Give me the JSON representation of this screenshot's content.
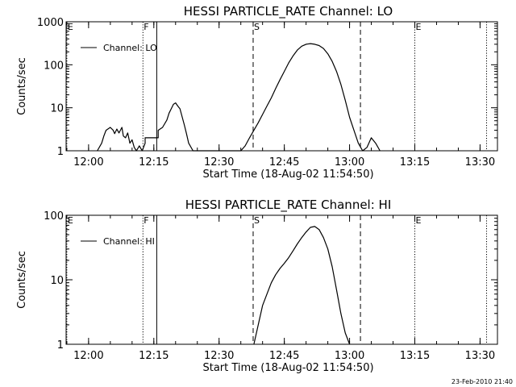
{
  "footer_stamp": "23-Feb-2010 21:40",
  "chart_data": [
    {
      "type": "line",
      "title": "HESSI PARTICLE_RATE Channel: LO",
      "xlabel": "Start Time (18-Aug-02 11:54:50)",
      "ylabel": "Counts/sec",
      "yscale": "log",
      "ylim": [
        1,
        1000
      ],
      "xlim": [
        "11:54:50",
        "13:34:00"
      ],
      "x_ticks": [
        "12:00",
        "12:15",
        "12:30",
        "12:45",
        "13:00",
        "13:15",
        "13:30"
      ],
      "y_ticks": [
        "1",
        "10",
        "100",
        "1000"
      ],
      "legend": "top-left",
      "series": [
        {
          "name": "Channel: LO",
          "x": [
            "12:02:00",
            "12:03:00",
            "12:03:30",
            "12:04:00",
            "12:05:00",
            "12:05:40",
            "12:06:00",
            "12:06:30",
            "12:07:00",
            "12:07:40",
            "12:08:00",
            "12:08:30",
            "12:09:00",
            "12:09:30",
            "12:10:00",
            "12:10:30",
            "12:11:00",
            "12:11:40",
            "12:12:20",
            "12:13:00",
            "12:13:00",
            "12:16:00",
            "12:16:00",
            "12:17:00",
            "12:18:00",
            "12:18:30",
            "12:19:00",
            "12:19:30",
            "12:20:00",
            "12:20:30",
            "12:21:00",
            "12:22:00",
            "12:22:30",
            "12:23:00",
            "12:24:00",
            "12:35:00",
            "12:36:00",
            "12:37:00",
            "12:38:00",
            "12:39:00",
            "12:40:00",
            "12:41:00",
            "12:42:00",
            "12:43:00",
            "12:44:00",
            "12:45:00",
            "12:46:00",
            "12:47:00",
            "12:48:00",
            "12:49:00",
            "12:50:00",
            "12:51:00",
            "12:52:00",
            "12:53:00",
            "12:54:00",
            "12:55:00",
            "12:56:00",
            "12:57:00",
            "12:58:00",
            "12:59:00",
            "13:00:00",
            "13:01:00",
            "13:02:00",
            "13:03:00",
            "13:04:00",
            "13:05:00",
            "13:06:00",
            "13:07:00"
          ],
          "values": [
            1,
            1.5,
            2.2,
            3,
            3.5,
            3,
            2.5,
            3.2,
            2.6,
            3.5,
            2.2,
            2,
            2.6,
            1.5,
            1.8,
            1.2,
            1,
            1.3,
            1,
            1.5,
            2,
            2,
            3,
            3.5,
            5.2,
            7.5,
            9.5,
            12,
            13,
            11,
            9.5,
            4,
            2.5,
            1.5,
            1,
            1,
            1.3,
            2,
            3,
            4.5,
            7,
            11,
            17,
            28,
            45,
            70,
            110,
            160,
            220,
            270,
            300,
            310,
            300,
            280,
            240,
            180,
            120,
            70,
            35,
            15,
            6,
            3,
            1.5,
            1,
            1.2,
            2,
            1.5,
            1
          ]
        }
      ],
      "markers": [
        {
          "label": "E",
          "x": "11:55:00",
          "style": "dotted"
        },
        {
          "label": "F",
          "x": "12:12:30",
          "style": "dotted"
        },
        {
          "label": "",
          "x": "12:15:40",
          "style": "solid"
        },
        {
          "label": "S",
          "x": "12:37:50",
          "style": "dashed"
        },
        {
          "label": "",
          "x": "13:02:30",
          "style": "dashed"
        },
        {
          "label": "E",
          "x": "13:15:00",
          "style": "dotted"
        },
        {
          "label": "",
          "x": "13:31:30",
          "style": "dotted"
        }
      ]
    },
    {
      "type": "line",
      "title": "HESSI PARTICLE_RATE Channel: HI",
      "xlabel": "Start Time (18-Aug-02 11:54:50)",
      "ylabel": "Counts/sec",
      "yscale": "log",
      "ylim": [
        1,
        100
      ],
      "xlim": [
        "11:54:50",
        "13:34:00"
      ],
      "x_ticks": [
        "12:00",
        "12:15",
        "12:30",
        "12:45",
        "13:00",
        "13:15",
        "13:30"
      ],
      "y_ticks": [
        "1",
        "10",
        "100"
      ],
      "legend": "top-left",
      "series": [
        {
          "name": "Channel: HI",
          "x": [
            "12:38:00",
            "12:39:00",
            "12:40:00",
            "12:41:00",
            "12:42:00",
            "12:43:00",
            "12:44:00",
            "12:45:00",
            "12:46:00",
            "12:47:00",
            "12:48:00",
            "12:49:00",
            "12:50:00",
            "12:51:00",
            "12:52:00",
            "12:53:00",
            "12:54:00",
            "12:55:00",
            "12:56:00",
            "12:57:00",
            "12:58:00",
            "12:59:00",
            "13:00:00"
          ],
          "values": [
            1,
            2,
            4,
            6,
            9,
            12,
            15,
            18,
            22,
            28,
            36,
            45,
            55,
            65,
            67,
            60,
            45,
            30,
            16,
            7,
            3,
            1.5,
            1
          ]
        }
      ],
      "markers": [
        {
          "label": "E",
          "x": "11:55:00",
          "style": "dotted"
        },
        {
          "label": "F",
          "x": "12:12:30",
          "style": "dotted"
        },
        {
          "label": "",
          "x": "12:15:40",
          "style": "solid"
        },
        {
          "label": "S",
          "x": "12:37:50",
          "style": "dashed"
        },
        {
          "label": "",
          "x": "13:02:30",
          "style": "dashed"
        },
        {
          "label": "E",
          "x": "13:15:00",
          "style": "dotted"
        },
        {
          "label": "",
          "x": "13:31:30",
          "style": "dotted"
        }
      ]
    }
  ]
}
